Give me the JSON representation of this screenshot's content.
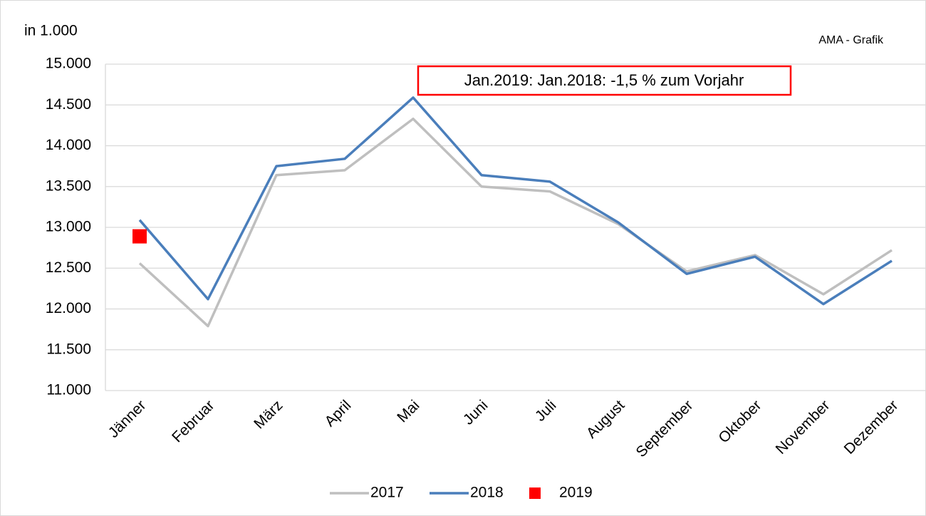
{
  "chart_data": {
    "type": "line",
    "y_unit_label": "in 1.000",
    "source": "AMA - Grafik",
    "annotation": "Jan.2019: Jan.2018: -1,5 % zum Vorjahr",
    "categories": [
      "Jänner",
      "Februar",
      "März",
      "April",
      "Mai",
      "Juni",
      "Juli",
      "August",
      "September",
      "Oktober",
      "November",
      "Dezember"
    ],
    "series": [
      {
        "name": "2017",
        "color": "#bfbfbf",
        "values": [
          12560,
          11790,
          13640,
          13700,
          14330,
          13500,
          13440,
          13040,
          12460,
          12660,
          12180,
          12720
        ]
      },
      {
        "name": "2018",
        "color": "#4a7ebb",
        "values": [
          13090,
          12120,
          13750,
          13840,
          14590,
          13640,
          13560,
          13060,
          12430,
          12640,
          12060,
          12590
        ]
      },
      {
        "name": "2019",
        "color": "#ff0000",
        "marker": "square",
        "values": [
          12890,
          null,
          null,
          null,
          null,
          null,
          null,
          null,
          null,
          null,
          null,
          null
        ]
      }
    ],
    "ylim": [
      11000,
      15000
    ],
    "yticks": [
      {
        "value": 11000,
        "label": "11.000"
      },
      {
        "value": 11500,
        "label": "11.500"
      },
      {
        "value": 12000,
        "label": "12.000"
      },
      {
        "value": 12500,
        "label": "12.500"
      },
      {
        "value": 13000,
        "label": "13.000"
      },
      {
        "value": 13500,
        "label": "13.500"
      },
      {
        "value": 14000,
        "label": "14.000"
      },
      {
        "value": 14500,
        "label": "14.500"
      },
      {
        "value": 15000,
        "label": "15.000"
      }
    ],
    "grid": true,
    "legend": "bottom"
  }
}
